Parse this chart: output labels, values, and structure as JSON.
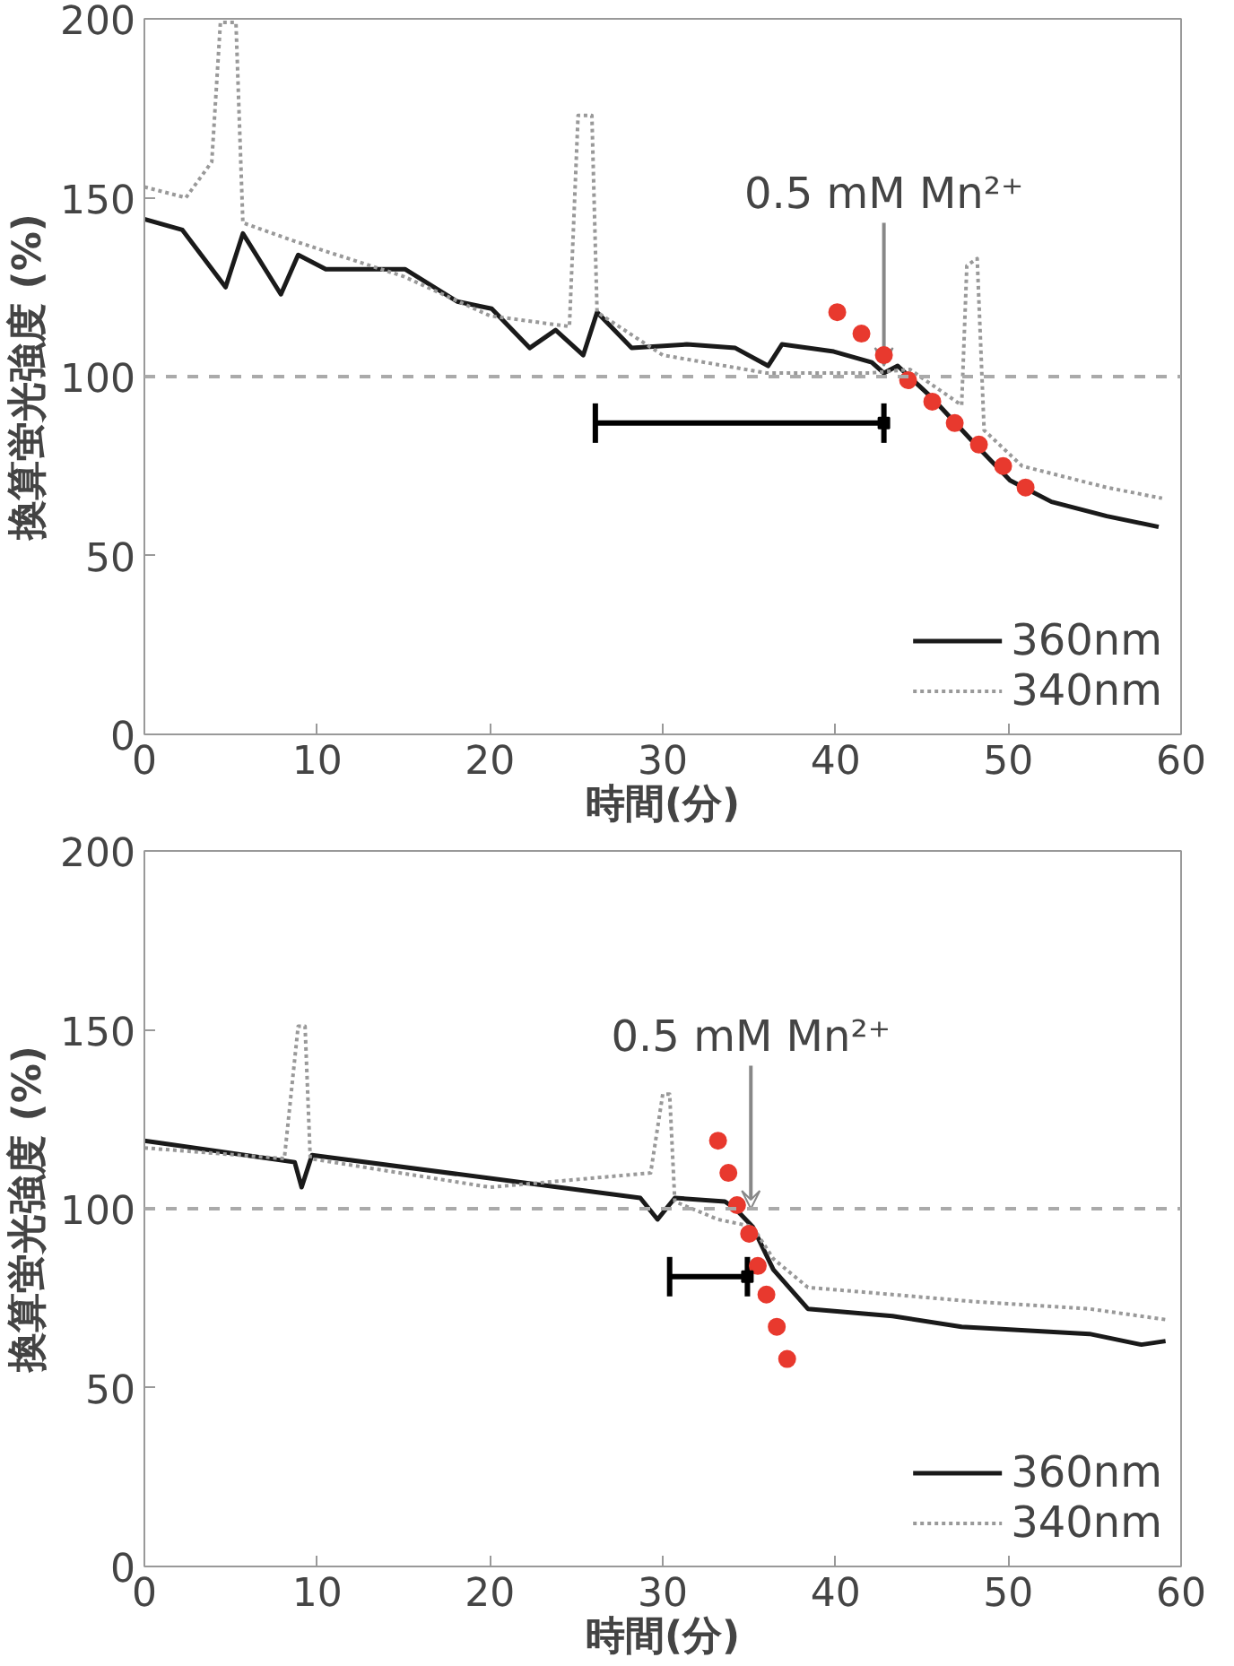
{
  "chart_data": [
    {
      "type": "line",
      "xlabel": "時間(分)",
      "ylabel": "換算蛍光強度 (%)",
      "xlim": [
        0,
        60
      ],
      "ylim": [
        0,
        200
      ],
      "xticks": [
        0,
        10,
        20,
        30,
        40,
        50,
        60
      ],
      "yticks": [
        0,
        50,
        100,
        150,
        200
      ],
      "grid": false,
      "legend": "bottom right",
      "marker": "none",
      "series": [
        {
          "name": "360nm",
          "color": "#1a1a1a",
          "line_style": "solid",
          "x": [
            0,
            2.2,
            4.7,
            5.7,
            7.9,
            8.9,
            10.5,
            15.1,
            18.1,
            20.1,
            22.3,
            23.8,
            25.4,
            26.2,
            28.2,
            31.4,
            34.2,
            36.1,
            36.9,
            39.9,
            42.1,
            42.8,
            43.6,
            45.6,
            48.1,
            50.1,
            52.5,
            55.7,
            58.7
          ],
          "values": [
            144,
            141,
            125,
            140,
            123,
            134,
            130,
            130,
            121,
            119,
            108,
            113,
            106,
            118,
            108,
            109,
            108,
            103,
            109,
            107,
            104,
            101,
            103,
            94,
            81,
            71,
            65,
            61,
            58
          ]
        },
        {
          "name": "340nm",
          "color": "#999999",
          "line_style": "dotted",
          "x": [
            0,
            2.4,
            3.9,
            4.4,
            5.3,
            5.7,
            8.6,
            15,
            20,
            24.6,
            25.1,
            25.9,
            26.2,
            30,
            36,
            42,
            44.3,
            47.3,
            47.6,
            48.2,
            48.6,
            50.8,
            55.7,
            58.9
          ],
          "values": [
            153,
            150,
            160,
            199,
            199,
            143,
            138,
            128,
            117,
            114,
            173,
            173,
            118,
            106,
            101,
            101,
            102,
            92,
            131,
            133,
            85,
            75,
            69,
            66
          ]
        },
        {
          "type": "scatter",
          "marker": "circle",
          "color": "#e8392e",
          "x": [
            40.1,
            41.5,
            42.8,
            44.2,
            45.6,
            46.9,
            48.3,
            49.7,
            51.0
          ],
          "values": [
            118,
            112,
            106,
            99,
            93,
            87,
            81,
            75,
            69
          ]
        },
        {
          "type": "scatter",
          "marker": "square",
          "color": "#000000",
          "x": [
            42.8
          ],
          "values": [
            87
          ],
          "xerrors": [
            [
              26.1,
              42.8
            ]
          ]
        }
      ],
      "ref_lines": [
        {
          "axis": "y",
          "value": 100,
          "color": "#aaaaaa",
          "line_style": "dashed"
        }
      ],
      "annotations": [
        {
          "text": "0.5 mM Mn²⁺",
          "x": 42.8,
          "y": 103
        }
      ]
    },
    {
      "type": "line",
      "xlabel": "時間(分)",
      "ylabel": "換算蛍光強度 (%)",
      "xlim": [
        0,
        60
      ],
      "ylim": [
        0,
        200
      ],
      "xticks": [
        0,
        10,
        20,
        30,
        40,
        50,
        60
      ],
      "yticks": [
        0,
        50,
        100,
        150,
        200
      ],
      "grid": false,
      "legend": "bottom right",
      "marker": "none",
      "series": [
        {
          "name": "360nm",
          "color": "#1a1a1a",
          "line_style": "solid",
          "x": [
            0,
            8.7,
            9.1,
            9.7,
            28.7,
            29.7,
            30.7,
            33.6,
            34.2,
            35.2,
            36.4,
            38.4,
            43.3,
            47.3,
            54.7,
            57.7,
            59.1
          ],
          "values": [
            119,
            113,
            106,
            115,
            103,
            97,
            103,
            102,
            100,
            95,
            83,
            72,
            70,
            67,
            65,
            62,
            63
          ]
        },
        {
          "name": "340nm",
          "color": "#999999",
          "line_style": "dotted",
          "x": [
            0,
            8.1,
            8.9,
            9.3,
            9.6,
            20,
            29.3,
            30,
            30.4,
            30.7,
            33.2,
            35.2,
            36.4,
            38.4,
            43.3,
            48.1,
            54.7,
            59.1
          ],
          "values": [
            117,
            114,
            151,
            151,
            114,
            106,
            110,
            132,
            132,
            102,
            97,
            95,
            86,
            78,
            76,
            74,
            72,
            69
          ]
        },
        {
          "type": "scatter",
          "marker": "circle",
          "color": "#e8392e",
          "x": [
            33.2,
            33.8,
            34.3,
            35.0,
            35.5,
            36.0,
            36.6,
            37.2
          ],
          "values": [
            119,
            110,
            101,
            93,
            84,
            76,
            67,
            58
          ]
        },
        {
          "type": "scatter",
          "marker": "square",
          "color": "#000000",
          "x": [
            34.9
          ],
          "values": [
            81
          ],
          "xerrors": [
            [
              30.4,
              34.9
            ]
          ]
        }
      ],
      "ref_lines": [
        {
          "axis": "y",
          "value": 100,
          "color": "#aaaaaa",
          "line_style": "dashed"
        }
      ],
      "annotations": [
        {
          "text": "0.5 mM Mn²⁺",
          "x": 35.1,
          "y": 100
        }
      ]
    }
  ]
}
